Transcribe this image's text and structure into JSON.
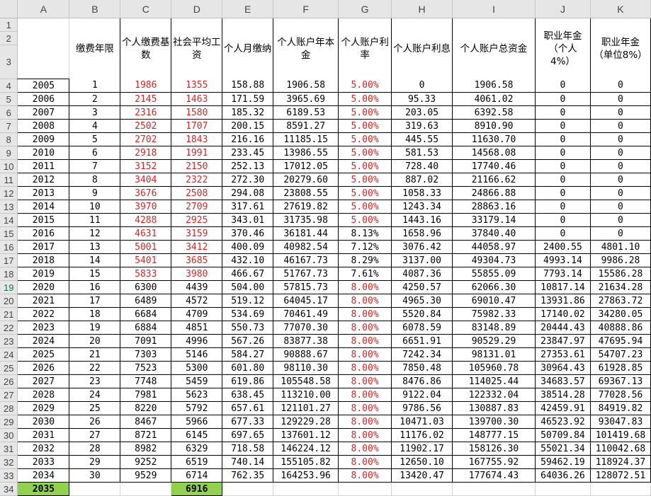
{
  "col_letters": [
    "A",
    "B",
    "C",
    "D",
    "E",
    "F",
    "G",
    "H",
    "I",
    "J",
    "K"
  ],
  "headers": {
    "B": "缴费年限",
    "C": "个人缴费基数",
    "D": "社会平均工资",
    "E": "个人月缴纳",
    "F": "个人账户年本金",
    "G": "个人账户利率",
    "H": "个人账户利息",
    "I": "个人账户总资金",
    "J": "职业年金（个人4%）",
    "K": "职业年金（单位8%）"
  },
  "rows": [
    [
      "2005",
      "1",
      "1986",
      "1355",
      "158.88",
      "1906.58",
      "5.00%",
      "0",
      "1906.58",
      "0",
      "0"
    ],
    [
      "2006",
      "2",
      "2145",
      "1463",
      "171.59",
      "3965.69",
      "5.00%",
      "95.33",
      "4061.02",
      "0",
      "0"
    ],
    [
      "2007",
      "3",
      "2316",
      "1580",
      "185.32",
      "6189.53",
      "5.00%",
      "203.05",
      "6392.58",
      "0",
      "0"
    ],
    [
      "2008",
      "4",
      "2502",
      "1707",
      "200.15",
      "8591.27",
      "5.00%",
      "319.63",
      "8910.90",
      "0",
      "0"
    ],
    [
      "2009",
      "5",
      "2702",
      "1843",
      "216.16",
      "11185.15",
      "5.00%",
      "445.55",
      "11630.70",
      "0",
      "0"
    ],
    [
      "2010",
      "6",
      "2918",
      "1991",
      "233.45",
      "13986.55",
      "5.00%",
      "581.53",
      "14568.08",
      "0",
      "0"
    ],
    [
      "2011",
      "7",
      "3152",
      "2150",
      "252.13",
      "17012.05",
      "5.00%",
      "728.40",
      "17740.46",
      "0",
      "0"
    ],
    [
      "2012",
      "8",
      "3404",
      "2322",
      "272.30",
      "20279.60",
      "5.00%",
      "887.02",
      "21166.62",
      "0",
      "0"
    ],
    [
      "2013",
      "9",
      "3676",
      "2508",
      "294.08",
      "23808.55",
      "5.00%",
      "1058.33",
      "24866.88",
      "0",
      "0"
    ],
    [
      "2014",
      "10",
      "3970",
      "2709",
      "317.61",
      "27619.82",
      "5.00%",
      "1243.34",
      "28863.16",
      "0",
      "0"
    ],
    [
      "2015",
      "11",
      "4288",
      "2925",
      "343.01",
      "31735.98",
      "5.00%",
      "1443.16",
      "33179.14",
      "0",
      "0"
    ],
    [
      "2016",
      "12",
      "4631",
      "3159",
      "370.46",
      "36181.44",
      "8.13%",
      "1658.96",
      "37840.40",
      "0",
      "0"
    ],
    [
      "2017",
      "13",
      "5001",
      "3412",
      "400.09",
      "40982.54",
      "7.12%",
      "3076.42",
      "44058.97",
      "2400.55",
      "4801.10"
    ],
    [
      "2018",
      "14",
      "5401",
      "3685",
      "432.10",
      "46167.73",
      "8.29%",
      "3137.00",
      "49304.73",
      "4993.14",
      "9986.28"
    ],
    [
      "2019",
      "15",
      "5833",
      "3980",
      "466.67",
      "51767.73",
      "7.61%",
      "4087.36",
      "55855.09",
      "7793.14",
      "15586.28"
    ],
    [
      "2020",
      "16",
      "6300",
      "4439",
      "504.00",
      "57815.73",
      "8.00%",
      "4250.57",
      "62066.30",
      "10817.14",
      "21634.28"
    ],
    [
      "2021",
      "17",
      "6489",
      "4572",
      "519.12",
      "64045.17",
      "8.00%",
      "4965.30",
      "69010.47",
      "13931.86",
      "27863.72"
    ],
    [
      "2022",
      "18",
      "6684",
      "4709",
      "534.69",
      "70461.49",
      "8.00%",
      "5520.84",
      "75982.33",
      "17140.02",
      "34280.05"
    ],
    [
      "2023",
      "19",
      "6884",
      "4851",
      "550.73",
      "77070.30",
      "8.00%",
      "6078.59",
      "83148.89",
      "20444.43",
      "40888.86"
    ],
    [
      "2024",
      "20",
      "7091",
      "4996",
      "567.26",
      "83877.38",
      "8.00%",
      "6651.91",
      "90529.29",
      "23847.97",
      "47695.94"
    ],
    [
      "2025",
      "21",
      "7303",
      "5146",
      "584.27",
      "90888.67",
      "8.00%",
      "7242.34",
      "98131.01",
      "27353.61",
      "54707.23"
    ],
    [
      "2026",
      "22",
      "7523",
      "5300",
      "601.80",
      "98110.30",
      "8.00%",
      "7850.48",
      "105960.78",
      "30964.43",
      "61928.85"
    ],
    [
      "2027",
      "23",
      "7748",
      "5459",
      "619.86",
      "105548.58",
      "8.00%",
      "8476.86",
      "114025.44",
      "34683.57",
      "69367.13"
    ],
    [
      "2028",
      "24",
      "7981",
      "5623",
      "638.45",
      "113210.00",
      "8.00%",
      "9122.04",
      "122332.04",
      "38514.28",
      "77028.56"
    ],
    [
      "2029",
      "25",
      "8220",
      "5792",
      "657.61",
      "121101.27",
      "8.00%",
      "9786.56",
      "130887.83",
      "42459.91",
      "84919.82"
    ],
    [
      "2030",
      "26",
      "8467",
      "5966",
      "677.33",
      "129229.28",
      "8.00%",
      "10471.03",
      "139700.30",
      "46523.92",
      "93047.83"
    ],
    [
      "2031",
      "27",
      "8721",
      "6145",
      "697.65",
      "137601.12",
      "8.00%",
      "11176.02",
      "148777.15",
      "50709.84",
      "101419.68"
    ],
    [
      "2032",
      "28",
      "8982",
      "6329",
      "718.58",
      "146224.12",
      "8.00%",
      "11902.17",
      "158126.30",
      "55021.34",
      "110042.68"
    ],
    [
      "2033",
      "29",
      "9252",
      "6519",
      "740.14",
      "155105.82",
      "8.00%",
      "12650.10",
      "167755.92",
      "59462.19",
      "118924.37"
    ],
    [
      "2034",
      "30",
      "9529",
      "6714",
      "762.35",
      "164253.96",
      "8.00%",
      "13420.47",
      "177674.43",
      "64036.26",
      "128072.51"
    ]
  ],
  "last_row": {
    "year": "2035",
    "avg_wage": "6916"
  },
  "row_numbers": {
    "r1": "1",
    "r2": "2",
    "r3": "3",
    "data": [
      "4",
      "5",
      "6",
      "7",
      "8",
      "9",
      "10",
      "11",
      "12",
      "13",
      "14",
      "15",
      "16",
      "17",
      "18",
      "19",
      "20",
      "21",
      "22",
      "23",
      "24",
      "25",
      "26",
      "27",
      "28",
      "29",
      "30",
      "31",
      "32",
      "33"
    ],
    "last": "34"
  },
  "colors": {
    "red_text": "#e02020",
    "highlight_green": "#92d050",
    "selected_row_header": "#217346"
  }
}
